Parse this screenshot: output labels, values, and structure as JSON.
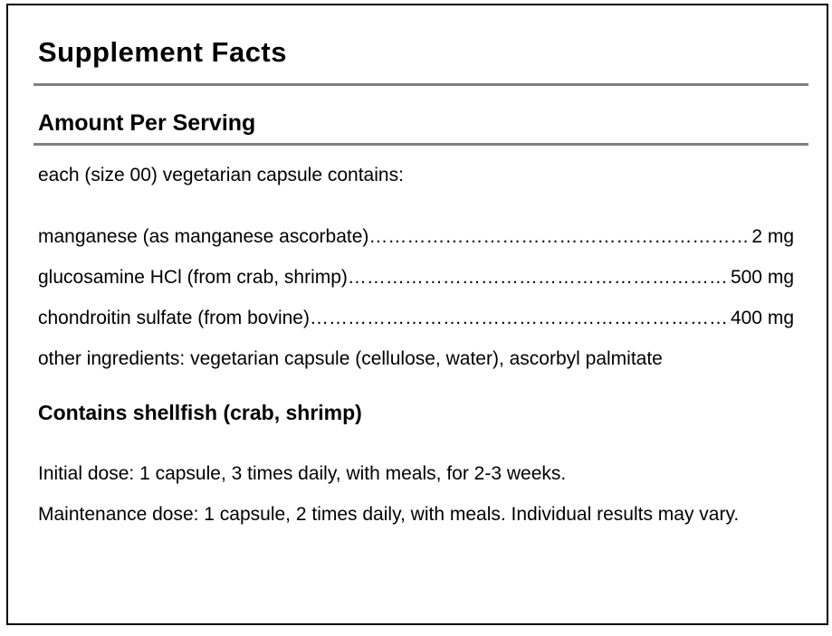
{
  "label": {
    "title": "Supplement Facts",
    "section_header": "Amount Per Serving",
    "serving_note": "each (size 00) vegetarian capsule contains:",
    "ingredients": [
      {
        "name": "manganese (as manganese ascorbate)",
        "amount": "2 mg"
      },
      {
        "name": "glucosamine HCl (from crab, shrimp)",
        "amount": "500 mg"
      },
      {
        "name": "chondroitin sulfate (from bovine)",
        "amount": "400 mg"
      }
    ],
    "leader_dots": "………………………………………………………………………………………………………………",
    "other_ingredients": "other ingredients: vegetarian capsule (cellulose, water), ascorbyl palmitate",
    "allergen_statement": "Contains shellfish (crab, shrimp)",
    "dosing_lines": [
      "Initial dose: 1 capsule, 3 times daily, with meals, for 2-3 weeks.",
      "Maintenance dose: 1 capsule, 2 times daily, with meals. Individual results may vary."
    ],
    "colors": {
      "text": "#000000",
      "rule": "#808080",
      "border": "#000000",
      "background": "#ffffff"
    }
  }
}
